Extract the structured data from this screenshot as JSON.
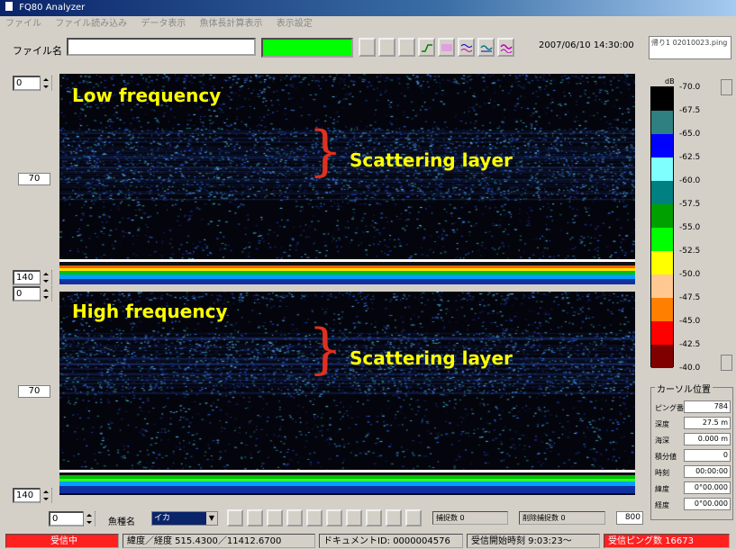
{
  "window": {
    "title": "FQ80 Analyzer"
  },
  "menu": [
    "ファイル",
    "ファイル読み込み",
    "データ表示",
    "魚体長計算表示",
    "表示設定"
  ],
  "header": {
    "file_label": "ファイル名",
    "file_value": "",
    "datetime": "2007/06/10 14:30:00",
    "info_text": "帰り1 02010023.ping"
  },
  "toolbar_icons": [
    "blank-icon",
    "blank-icon",
    "blank-icon",
    "line-wave-icon",
    "purple-wave-icon",
    "dual-wave-icon",
    "teal-wave-icon",
    "magenta-wave-icon"
  ],
  "echograms": {
    "low": {
      "label": "Low frequency",
      "layer_label": "Scattering layer",
      "depth_top": "0",
      "depth_mid": "70",
      "depth_bottom": "140"
    },
    "high": {
      "label": "High frequency",
      "layer_label": "Scattering layer",
      "depth_top": "0",
      "depth_mid": "70",
      "depth_bottom": "140"
    }
  },
  "colorbar": {
    "unit": "dB",
    "levels": [
      "-70.0",
      "-67.5",
      "-65.0",
      "-62.5",
      "-60.0",
      "-57.5",
      "-55.0",
      "-52.5",
      "-50.0",
      "-47.5",
      "-45.0",
      "-42.5",
      "-40.0"
    ],
    "colors": [
      "#000000",
      "#2f8080",
      "#0000ff",
      "#80ffff",
      "#008080",
      "#00a000",
      "#00ff00",
      "#ffff00",
      "#ffc890",
      "#ff8000",
      "#ff0000",
      "#800000"
    ]
  },
  "cursor": {
    "title": "カーソル位置",
    "rows": [
      {
        "label": "ピング番号",
        "value": "784"
      },
      {
        "label": "深度",
        "value": "27.5 m"
      },
      {
        "label": "海深",
        "value": "0.000 m"
      },
      {
        "label": "積分値",
        "value": "0"
      },
      {
        "label": "時刻",
        "value": "00:00:00"
      },
      {
        "label": "緯度",
        "value": "0°00.000"
      },
      {
        "label": "経度",
        "value": "0°00.000"
      }
    ]
  },
  "bottom": {
    "spin_value": "0",
    "fish_label": "魚種名",
    "fish_value": "イカ",
    "capture_count": "捕捉数 0",
    "deleted_count": "削除捕捉数 0",
    "value_right": "800"
  },
  "status": {
    "state": "受信中",
    "latlon": "緯度／経度 515.4300／11412.6700",
    "doc_id": "ドキュメントID: 0000004576",
    "start_time": "受信開始時刻 9:03:23～",
    "ping_count": "受信ピング数 16673"
  }
}
